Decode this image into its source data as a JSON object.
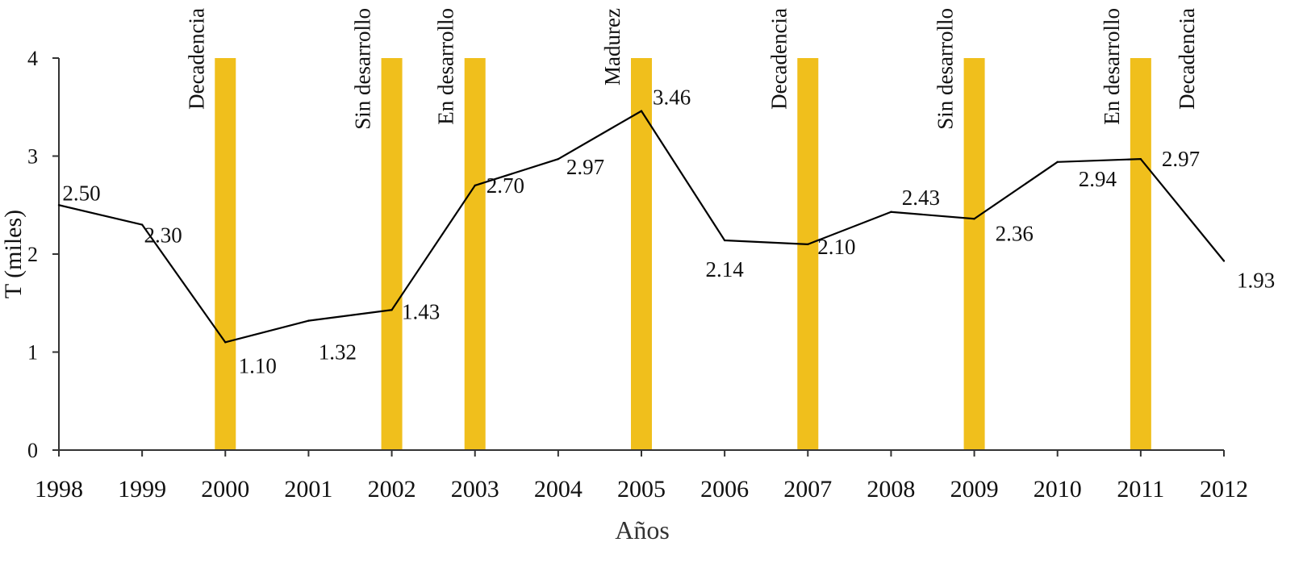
{
  "chart_data": {
    "type": "line",
    "title": "",
    "xlabel": "Años",
    "ylabel": "T (miles)",
    "ylim": [
      0,
      4
    ],
    "yticks": [
      0,
      1,
      2,
      3,
      4
    ],
    "categories": [
      "1998",
      "1999",
      "2000",
      "2001",
      "2002",
      "2003",
      "2004",
      "2005",
      "2006",
      "2007",
      "2008",
      "2009",
      "2010",
      "2011",
      "2012"
    ],
    "series": [
      {
        "name": "T",
        "color": "#000000",
        "x": [
          1998,
          1999,
          2000,
          2001,
          2002,
          2003,
          2004,
          2005,
          2006,
          2007,
          2008,
          2009,
          2010,
          2011,
          2012
        ],
        "values": [
          2.5,
          2.3,
          1.1,
          1.32,
          1.43,
          2.7,
          2.97,
          3.46,
          2.14,
          2.1,
          2.43,
          2.36,
          2.94,
          2.97,
          1.93
        ],
        "labels": [
          "2.50",
          "2.30",
          "1.10",
          "1.32",
          "1.43",
          "2.70",
          "2.97",
          "3.46",
          "2.14",
          "2.10",
          "2.43",
          "2.36",
          "2.94",
          "2.97",
          "1.93"
        ]
      }
    ],
    "phase_bars": {
      "color": "#f0bf1c",
      "value": 4,
      "items": [
        {
          "year": 2000,
          "label": "Decadencia"
        },
        {
          "year": 2002,
          "label": "Sin desarrollo"
        },
        {
          "year": 2003,
          "label": "En desarrollo"
        },
        {
          "year": 2005,
          "label": "Madurez"
        },
        {
          "year": 2007,
          "label": "Decadencia"
        },
        {
          "year": 2009,
          "label": "Sin desarrollo"
        },
        {
          "year": 2011,
          "label": "En desarrollo"
        }
      ]
    },
    "extra_annotations": [
      {
        "year": 2012,
        "label": "Decadencia"
      }
    ],
    "legend": "none",
    "grid": false
  }
}
